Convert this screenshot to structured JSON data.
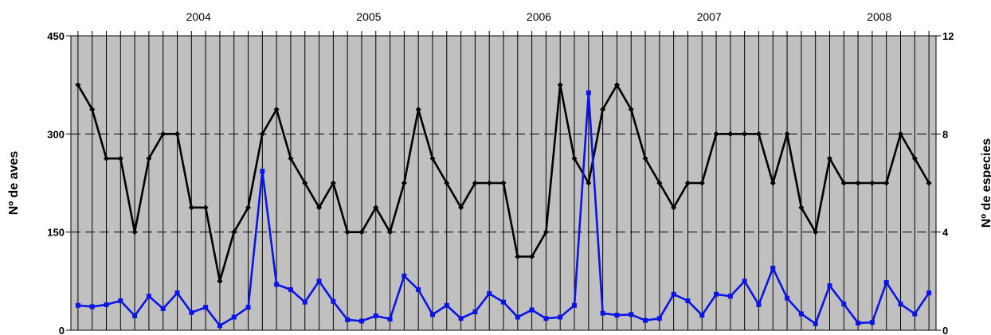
{
  "chart_data": {
    "type": "line",
    "years": [
      "2004",
      "2005",
      "2006",
      "2007",
      "2008"
    ],
    "left_axis": {
      "title": "Nº de aves",
      "ticks": [
        "0",
        "150",
        "300",
        "450"
      ],
      "range": [
        0,
        450
      ]
    },
    "right_axis": {
      "title": "Nº de especies",
      "ticks": [
        "0",
        "4",
        "8",
        "12"
      ],
      "range": [
        0,
        12
      ]
    },
    "grid": "horizontal dashed at tick values, vertical line at each month",
    "series": [
      {
        "axis": "right",
        "color": "#000000",
        "values": [
          10,
          9,
          7,
          7,
          4,
          7,
          8,
          8,
          5,
          5,
          2,
          4,
          5,
          8,
          9,
          7,
          6,
          5,
          6,
          4,
          4,
          5,
          4,
          6,
          9,
          7,
          6,
          5,
          6,
          6,
          6,
          3,
          3,
          4,
          10,
          7,
          6,
          9,
          10,
          9,
          7,
          6,
          5,
          6,
          6,
          8,
          8,
          8,
          8,
          6,
          8,
          5,
          4,
          7,
          6,
          6,
          6,
          6,
          8,
          7,
          6
        ]
      },
      {
        "axis": "left",
        "color": "#0a14e6",
        "values": [
          38,
          36,
          39,
          45,
          22,
          52,
          33,
          57,
          27,
          35,
          7,
          20,
          35,
          243,
          70,
          62,
          43,
          75,
          44,
          16,
          14,
          22,
          17,
          83,
          62,
          24,
          38,
          18,
          28,
          56,
          43,
          20,
          31,
          18,
          20,
          38,
          363,
          26,
          23,
          24,
          15,
          18,
          55,
          45,
          23,
          55,
          52,
          75,
          39,
          95,
          49,
          25,
          10,
          68,
          40,
          11,
          12,
          73,
          40,
          25,
          57
        ]
      }
    ]
  }
}
